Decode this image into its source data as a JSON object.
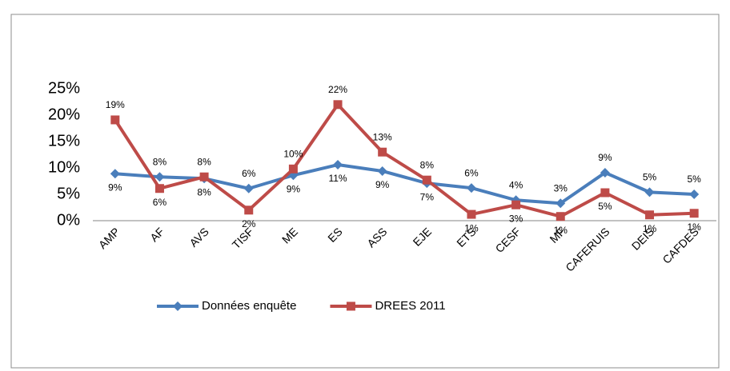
{
  "chart_data": {
    "type": "line",
    "categories": [
      "AMP",
      "AF",
      "AVS",
      "TISF",
      "ME",
      "ES",
      "ASS",
      "EJE",
      "ETS",
      "CESF",
      "MF",
      "CAFERUIS",
      "DEIS",
      "CAFDES"
    ],
    "series": [
      {
        "name": "Données enquête",
        "color": "#4a7ebb",
        "marker": "diamond",
        "values": [
          8.9,
          8.3,
          8.0,
          6.1,
          8.6,
          10.6,
          9.4,
          7.1,
          6.2,
          3.9,
          3.3,
          9.1,
          5.4,
          5.0
        ],
        "value_labels": [
          "9%",
          "8%",
          "8%",
          "6%",
          "9%",
          "11%",
          "9%",
          "7%",
          "6%",
          "4%",
          "3%",
          "9%",
          "5%",
          "5%"
        ]
      },
      {
        "name": "DREES 2011",
        "color": "#be4b48",
        "marker": "square",
        "values": [
          19.1,
          6.1,
          8.3,
          2.0,
          9.8,
          22.0,
          13.0,
          7.7,
          1.2,
          3.0,
          0.8,
          5.3,
          1.1,
          1.4
        ],
        "value_labels": [
          "19%",
          "6%",
          "8%",
          "2%",
          "10%",
          "22%",
          "13%",
          "8%",
          "1%",
          "3%",
          "1%",
          "5%",
          "1%",
          "1%"
        ]
      }
    ],
    "ylim": [
      0,
      25
    ],
    "yticks": [
      {
        "value": 0,
        "label": "0%"
      },
      {
        "value": 5,
        "label": "5%"
      },
      {
        "value": 10,
        "label": "10%"
      },
      {
        "value": 15,
        "label": "15%"
      },
      {
        "value": 20,
        "label": "20%"
      },
      {
        "value": 25,
        "label": "25%"
      }
    ],
    "grid": false,
    "legend": "bottom"
  }
}
